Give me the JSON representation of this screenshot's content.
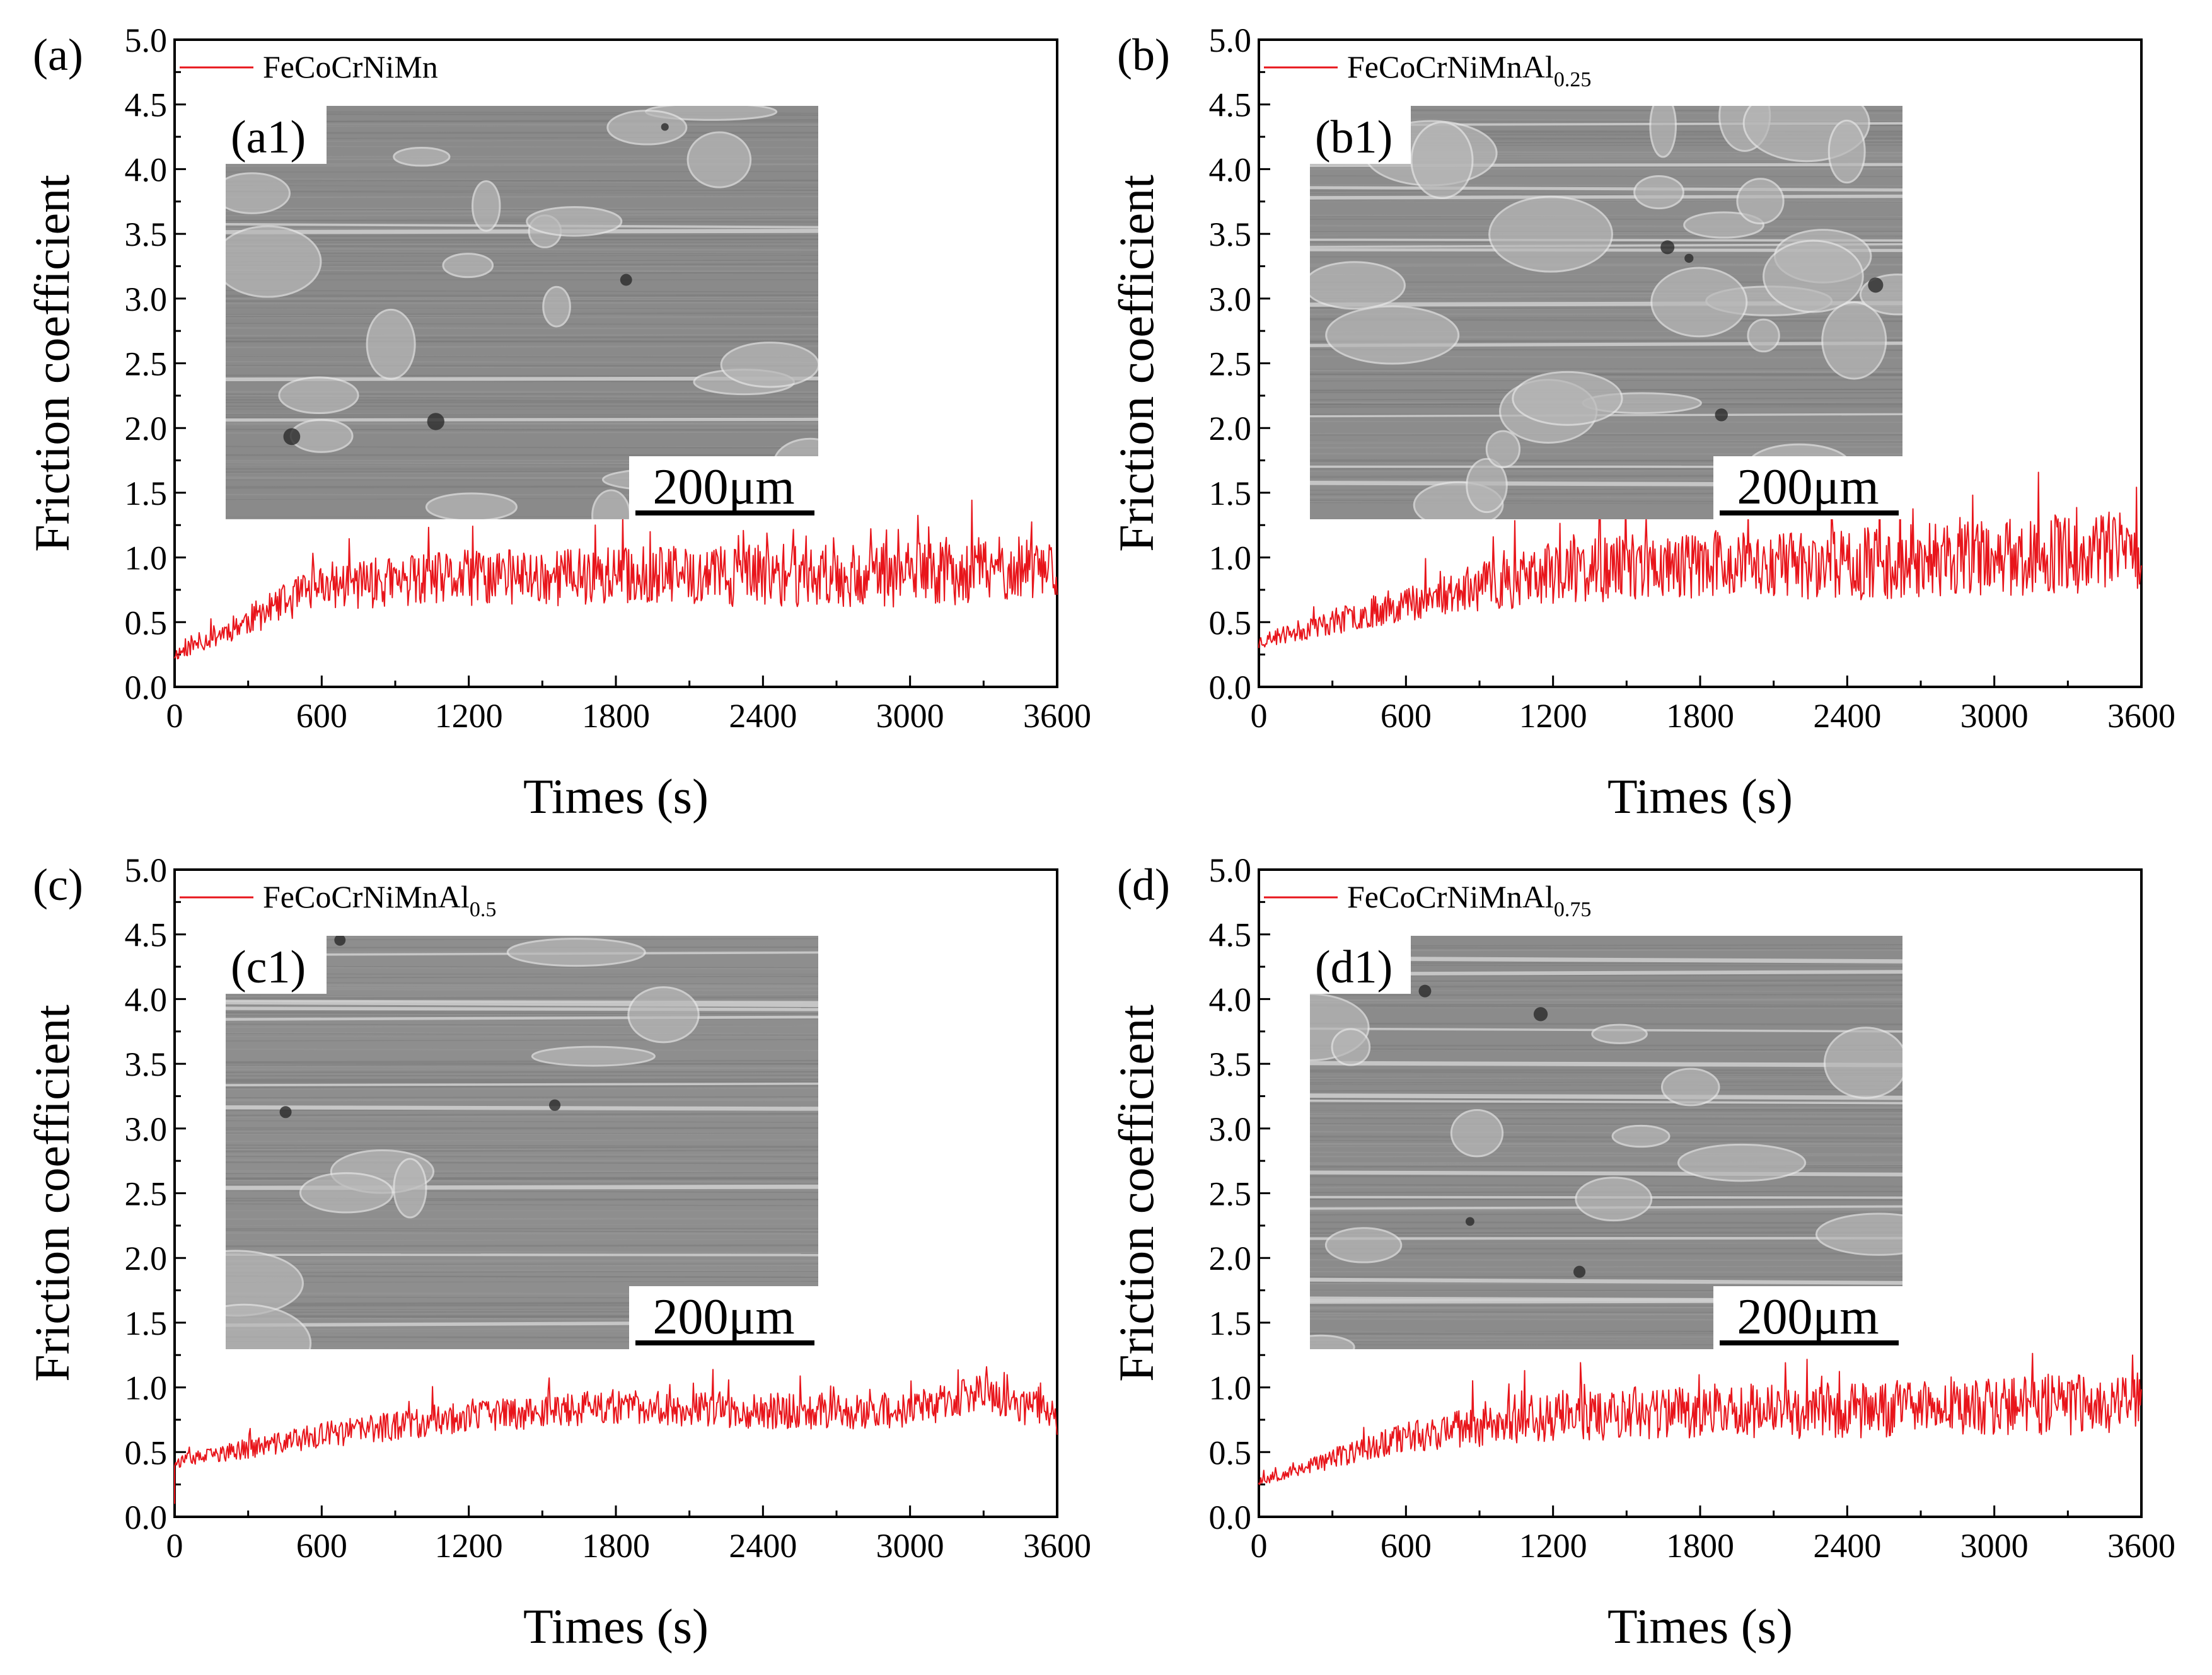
{
  "chart_data": [
    {
      "type": "line",
      "panel_label": "(a)",
      "inset_label": "(a1)",
      "scale_bar": "200μm",
      "legend": {
        "base": "FeCoCrNiMn",
        "sub": ""
      },
      "xlabel": "Times (s)",
      "ylabel": "Friction coefficient",
      "xlim": [
        0,
        3600
      ],
      "ylim": [
        0,
        5
      ],
      "xticks": [
        "0",
        "600",
        "1200",
        "1800",
        "2400",
        "3000",
        "3600"
      ],
      "yticks": [
        "0.0",
        "0.5",
        "1.0",
        "1.5",
        "2.0",
        "2.5",
        "3.0",
        "3.5",
        "4.0",
        "4.5",
        "5.0"
      ],
      "series": [
        {
          "name": "FeCoCrNiMn",
          "color": "#e8151b",
          "start": 0.22,
          "trend": [
            [
              0,
              0.25
            ],
            [
              600,
              0.78
            ],
            [
              1200,
              0.84
            ],
            [
              1800,
              0.86
            ],
            [
              2400,
              0.86
            ],
            [
              3000,
              0.86
            ],
            [
              3600,
              0.95
            ]
          ],
          "amplitude": [
            [
              0,
              0.05
            ],
            [
              600,
              0.18
            ],
            [
              1200,
              0.22
            ],
            [
              3600,
              0.26
            ]
          ],
          "seed": 11
        }
      ],
      "seam": {
        "color": "#8a8a8a",
        "lines": 4,
        "blobs": 20,
        "seed": 101
      }
    },
    {
      "type": "line",
      "panel_label": "(b)",
      "inset_label": "(b1)",
      "scale_bar": "200μm",
      "legend": {
        "base": "FeCoCrNiMnAl",
        "sub": "0.25"
      },
      "xlabel": "Times (s)",
      "ylabel": "Friction coefficient",
      "xlim": [
        0,
        3600
      ],
      "ylim": [
        0,
        5
      ],
      "xticks": [
        "0",
        "600",
        "1200",
        "1800",
        "2400",
        "3000",
        "3600"
      ],
      "yticks": [
        "0.0",
        "0.5",
        "1.0",
        "1.5",
        "2.0",
        "2.5",
        "3.0",
        "3.5",
        "4.0",
        "4.5",
        "5.0"
      ],
      "series": [
        {
          "name": "FeCoCrNiMnAl0.25",
          "color": "#e8151b",
          "start": 0.3,
          "trend": [
            [
              0,
              0.35
            ],
            [
              600,
              0.65
            ],
            [
              1200,
              0.88
            ],
            [
              1800,
              0.95
            ],
            [
              2400,
              0.95
            ],
            [
              3000,
              1.0
            ],
            [
              3600,
              1.05
            ]
          ],
          "amplitude": [
            [
              0,
              0.06
            ],
            [
              600,
              0.14
            ],
            [
              1200,
              0.24
            ],
            [
              3600,
              0.32
            ]
          ],
          "seed": 23
        }
      ],
      "seam": {
        "color": "#8c8c8c",
        "lines": 12,
        "blobs": 26,
        "seed": 202
      }
    },
    {
      "type": "line",
      "panel_label": "(c)",
      "inset_label": "(c1)",
      "scale_bar": "200μm",
      "legend": {
        "base": "FeCoCrNiMnAl",
        "sub": "0.5"
      },
      "xlabel": "Times (s)",
      "ylabel": "Friction coefficient",
      "xlim": [
        0,
        3600
      ],
      "ylim": [
        0,
        5
      ],
      "xticks": [
        "0",
        "600",
        "1200",
        "1800",
        "2400",
        "3000",
        "3600"
      ],
      "yticks": [
        "0.0",
        "0.5",
        "1.0",
        "1.5",
        "2.0",
        "2.5",
        "3.0",
        "3.5",
        "4.0",
        "4.5",
        "5.0"
      ],
      "series": [
        {
          "name": "FeCoCrNiMnAl0.5",
          "color": "#e8151b",
          "start": 0.1,
          "trend": [
            [
              0,
              0.42
            ],
            [
              600,
              0.63
            ],
            [
              1200,
              0.78
            ],
            [
              1800,
              0.85
            ],
            [
              2400,
              0.82
            ],
            [
              3000,
              0.82
            ],
            [
              3300,
              0.95
            ],
            [
              3600,
              0.78
            ]
          ],
          "amplitude": [
            [
              0,
              0.05
            ],
            [
              600,
              0.1
            ],
            [
              1200,
              0.13
            ],
            [
              3600,
              0.15
            ]
          ],
          "seed": 37
        }
      ],
      "seam": {
        "color": "#8e8e8e",
        "lines": 10,
        "blobs": 8,
        "seed": 303
      }
    },
    {
      "type": "line",
      "panel_label": "(d)",
      "inset_label": "(d1)",
      "scale_bar": "200μm",
      "legend": {
        "base": "FeCoCrNiMnAl",
        "sub": "0.75"
      },
      "xlabel": "Times (s)",
      "ylabel": "Friction coefficient",
      "xlim": [
        0,
        3600
      ],
      "ylim": [
        0,
        5
      ],
      "xticks": [
        "0",
        "600",
        "1200",
        "1800",
        "2400",
        "3000",
        "3600"
      ],
      "yticks": [
        "0.0",
        "0.5",
        "1.0",
        "1.5",
        "2.0",
        "2.5",
        "3.0",
        "3.5",
        "4.0",
        "4.5",
        "5.0"
      ],
      "series": [
        {
          "name": "FeCoCrNiMnAl0.75",
          "color": "#e8151b",
          "start": 0.25,
          "trend": [
            [
              0,
              0.28
            ],
            [
              600,
              0.62
            ],
            [
              1200,
              0.78
            ],
            [
              1800,
              0.82
            ],
            [
              2400,
              0.82
            ],
            [
              3000,
              0.85
            ],
            [
              3600,
              0.88
            ]
          ],
          "amplitude": [
            [
              0,
              0.04
            ],
            [
              600,
              0.12
            ],
            [
              1200,
              0.2
            ],
            [
              3600,
              0.24
            ]
          ],
          "seed": 53
        }
      ],
      "seam": {
        "color": "#8b8b8b",
        "lines": 14,
        "blobs": 12,
        "seed": 404
      }
    }
  ]
}
